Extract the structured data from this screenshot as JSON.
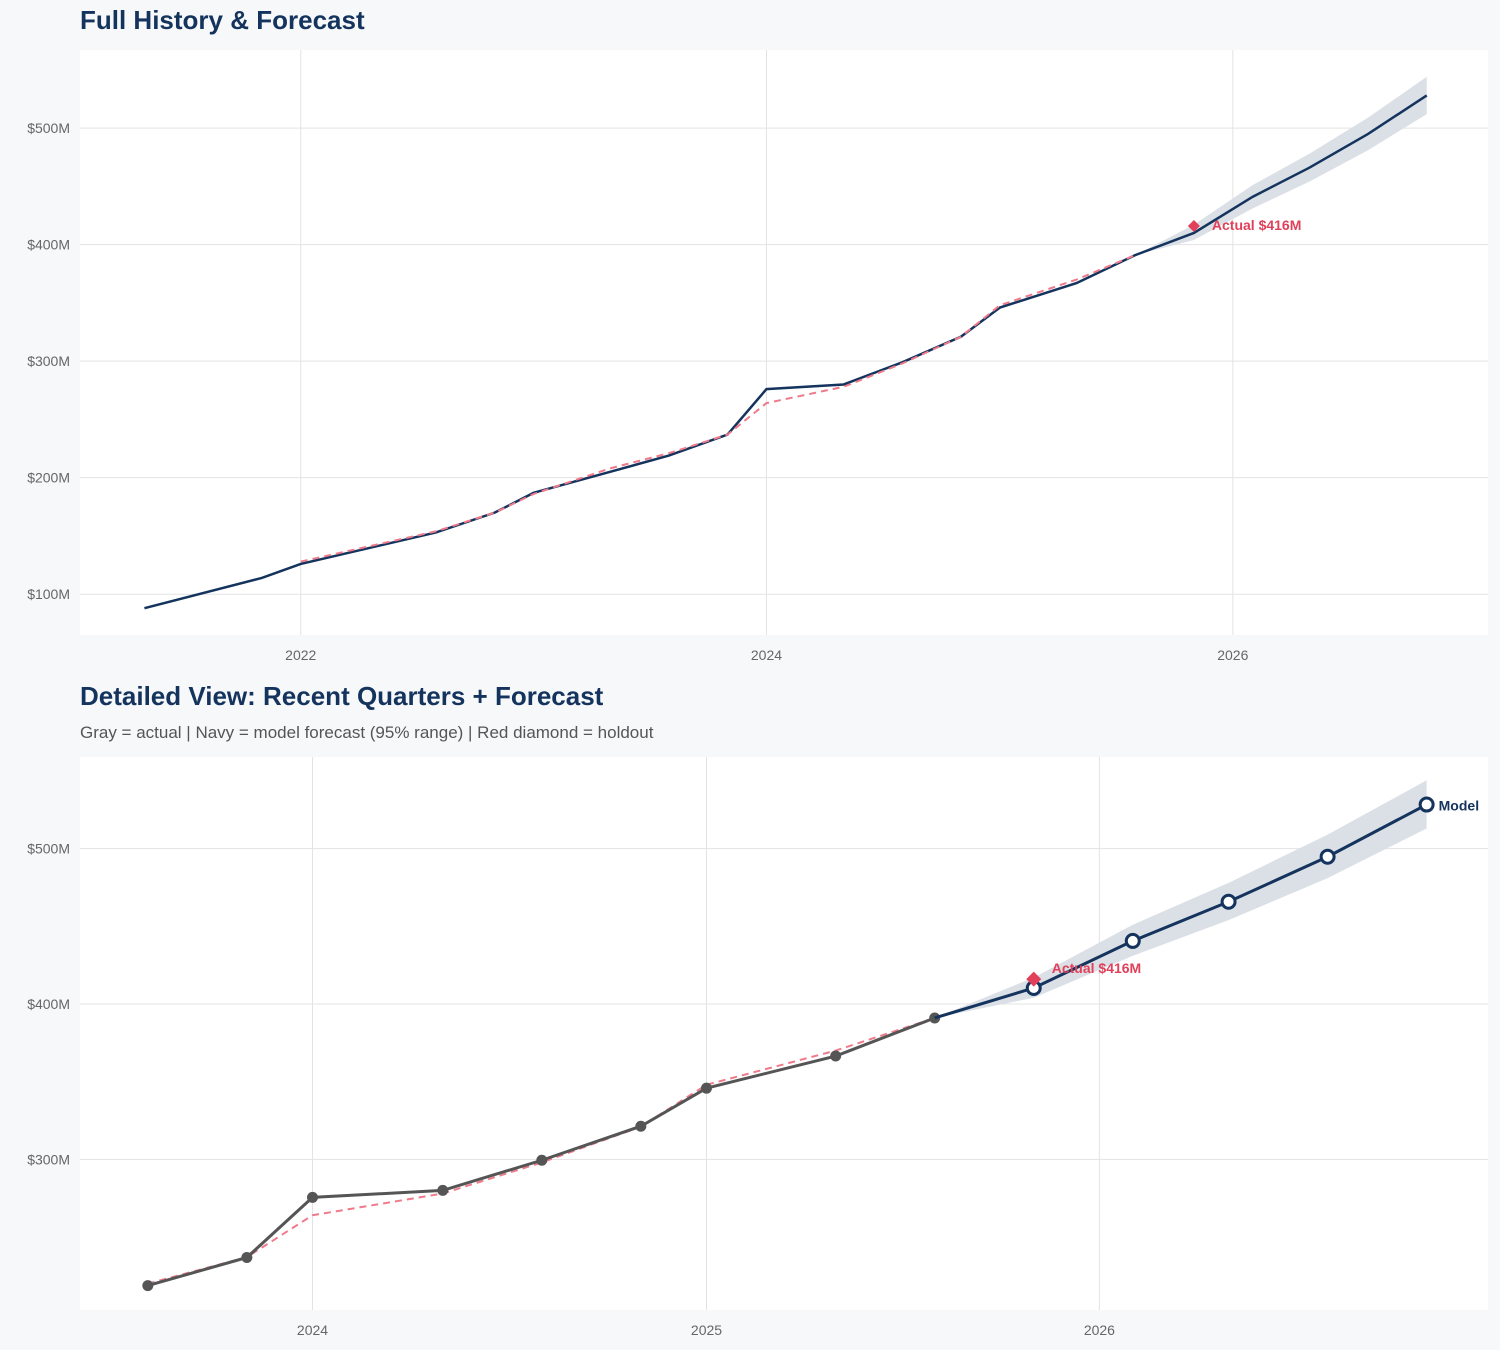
{
  "colors": {
    "navy": "#14345e",
    "actual_gray": "#555555",
    "holdout_red": "#e0405a",
    "fit_dashed": "#ef7a8a",
    "band": "#d9dee6",
    "grid": "#e3e3e3",
    "panel": "#ffffff"
  },
  "chart_data": [
    {
      "type": "line",
      "title": "Full History & Forecast",
      "xlim": [
        "2021-01-20",
        "2027-02-05"
      ],
      "ylim": [
        65,
        567
      ],
      "x_ticks": [
        {
          "date": "2022-01-01",
          "label": "2022"
        },
        {
          "date": "2024-01-01",
          "label": "2024"
        },
        {
          "date": "2026-01-01",
          "label": "2026"
        }
      ],
      "y_ticks": [
        {
          "value": 100,
          "label": "$100M"
        },
        {
          "value": 200,
          "label": "$200M"
        },
        {
          "value": 300,
          "label": "$300M"
        },
        {
          "value": 400,
          "label": "$400M"
        },
        {
          "value": 500,
          "label": "$500M"
        }
      ],
      "grid": true,
      "series": [
        {
          "style": "navy-solid",
          "x": [
            "2021-05-01",
            "2021-11-01",
            "2022-01-01",
            "2022-08-01",
            "2022-11-01",
            "2023-01-01",
            "2023-05-01",
            "2023-08-01",
            "2023-11-01",
            "2024-01-01",
            "2024-05-01",
            "2024-08-01",
            "2024-11-01",
            "2025-01-01",
            "2025-05-01",
            "2025-08-01",
            "2025-11-01",
            "2026-02-01",
            "2026-05-01",
            "2026-08-01",
            "2026-11-01"
          ],
          "y": [
            88,
            114,
            126,
            153,
            170,
            187,
            205,
            219,
            237,
            276,
            280,
            299,
            321,
            346,
            367,
            391,
            410,
            441,
            466,
            495,
            528
          ]
        },
        {
          "style": "red-dashed",
          "x": [
            "2022-01-01",
            "2022-08-01",
            "2022-11-01",
            "2023-01-01",
            "2023-05-01",
            "2023-08-01",
            "2023-11-01",
            "2024-01-01",
            "2024-05-01",
            "2024-08-01",
            "2024-11-01",
            "2025-01-01",
            "2025-05-01",
            "2025-08-01"
          ],
          "y": [
            128,
            154,
            170,
            186,
            208,
            221,
            237,
            264,
            278,
            298,
            321,
            348,
            370,
            391
          ]
        }
      ],
      "band": {
        "x": [
          "2025-08-01",
          "2025-11-01",
          "2026-02-01",
          "2026-05-01",
          "2026-08-01",
          "2026-11-01"
        ],
        "lower": [
          391,
          404,
          431,
          454,
          481,
          512
        ],
        "upper": [
          391,
          417,
          451,
          478,
          509,
          544
        ]
      },
      "holdout": {
        "x": "2025-11-01",
        "y": 416,
        "label": "Actual $416M"
      }
    },
    {
      "type": "line",
      "title": "Detailed View: Recent Quarters + Forecast",
      "subtitle": "Gray = actual  |  Navy = model forecast (95% range)  |  Red diamond = holdout",
      "xlim": [
        "2023-05-30",
        "2026-12-28"
      ],
      "ylim": [
        203,
        559
      ],
      "x_ticks": [
        {
          "date": "2024-01-01",
          "label": "2024"
        },
        {
          "date": "2025-01-01",
          "label": "2025"
        },
        {
          "date": "2026-01-01",
          "label": "2026"
        }
      ],
      "y_ticks": [
        {
          "value": 300,
          "label": "$300M"
        },
        {
          "value": 400,
          "label": "$400M"
        },
        {
          "value": 500,
          "label": "$500M"
        }
      ],
      "grid": true,
      "series": [
        {
          "style": "red-dashed",
          "x": [
            "2023-08-01",
            "2023-11-01",
            "2024-01-01",
            "2024-05-01",
            "2024-08-01",
            "2024-11-01",
            "2025-01-01",
            "2025-05-01",
            "2025-08-01"
          ],
          "y": [
            220,
            237,
            264,
            278,
            298,
            321,
            348,
            370,
            391
          ]
        },
        {
          "style": "gray-markers",
          "x": [
            "2023-08-01",
            "2023-11-01",
            "2024-01-01",
            "2024-05-01",
            "2024-08-01",
            "2024-11-01",
            "2025-01-01",
            "2025-05-01",
            "2025-08-01"
          ],
          "y": [
            218.7,
            236.8,
            275.5,
            280,
            299.4,
            321.3,
            345.8,
            366.5,
            391
          ]
        },
        {
          "style": "navy-open-markers",
          "x": [
            "2025-08-01",
            "2025-11-01",
            "2026-02-01",
            "2026-05-01",
            "2026-08-01",
            "2026-11-01"
          ],
          "y": [
            391,
            410.3,
            440.6,
            465.8,
            494.8,
            528.4
          ],
          "end_label": "Model"
        }
      ],
      "band": {
        "x": [
          "2025-08-01",
          "2025-11-01",
          "2026-02-01",
          "2026-05-01",
          "2026-08-01",
          "2026-11-01"
        ],
        "lower": [
          391,
          404,
          431,
          454,
          481,
          513
        ],
        "upper": [
          391,
          417,
          451,
          478,
          509,
          544
        ]
      },
      "holdout": {
        "x": "2025-11-01",
        "y": 416,
        "label": "Actual $416M"
      }
    }
  ]
}
